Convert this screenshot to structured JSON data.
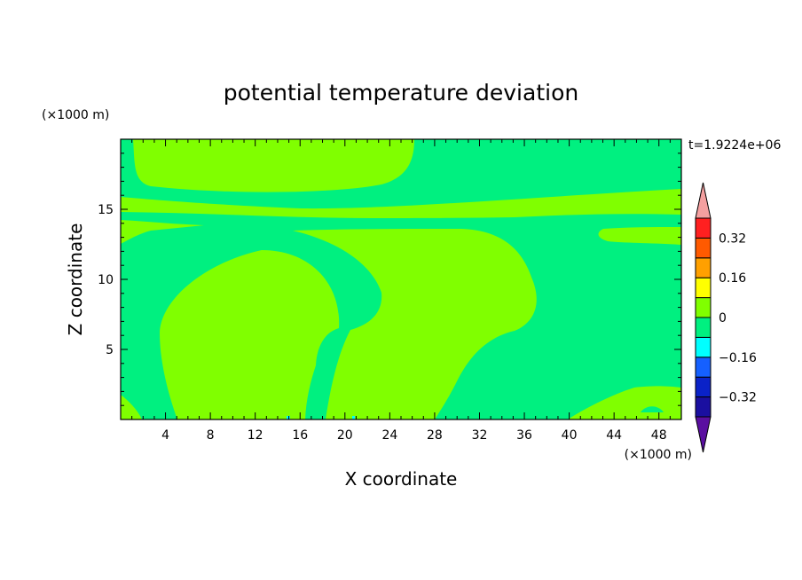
{
  "chart_data": {
    "type": "heatmap",
    "title": "potential temperature deviation",
    "xlabel": "X coordinate",
    "ylabel": "Z coordinate",
    "x_unit": "(×1000 m)",
    "y_unit": "(×1000 m)",
    "time_label": "t=1.9224e+06",
    "xlim": [
      0,
      50
    ],
    "ylim": [
      0,
      20
    ],
    "x_ticks": [
      4,
      8,
      12,
      16,
      20,
      24,
      28,
      32,
      36,
      40,
      44,
      48
    ],
    "y_ticks": [
      5,
      10,
      15
    ],
    "colorbar": {
      "levels": [
        -0.4,
        -0.32,
        -0.24,
        -0.16,
        -0.08,
        0,
        0.08,
        0.16,
        0.24,
        0.32,
        0.4
      ],
      "colors": [
        "#5a0fa0",
        "#1a0fa0",
        "#0a22c8",
        "#1560ff",
        "#00ffff",
        "#00f080",
        "#80ff00",
        "#ffff00",
        "#ffa000",
        "#ff5a00",
        "#ff2020",
        "#f4a0a0"
      ],
      "labels": [
        {
          "value": -0.32,
          "text": "−0.32"
        },
        {
          "value": -0.16,
          "text": "−0.16"
        },
        {
          "value": 0,
          "text": "0"
        },
        {
          "value": 0.16,
          "text": "0.16"
        },
        {
          "value": 0.32,
          "text": "0.32"
        }
      ]
    },
    "field_colors": {
      "negative": "#00f080",
      "positive": "#80ff00",
      "min_spot": "#00ffff"
    }
  }
}
